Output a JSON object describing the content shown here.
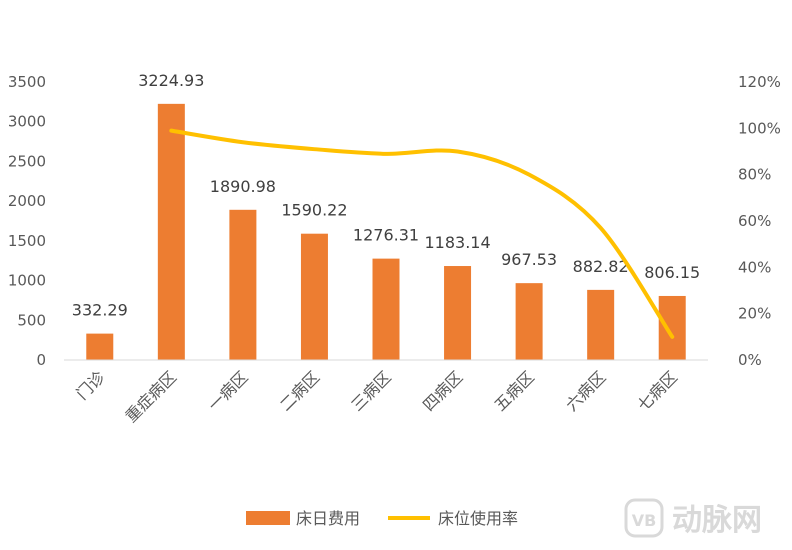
{
  "chart_data": {
    "type": "bar+line",
    "categories": [
      "门诊",
      "重症病区",
      "一病区",
      "二病区",
      "三病区",
      "四病区",
      "五病区",
      "六病区",
      "七病区"
    ],
    "series": [
      {
        "name": "床日费用",
        "type": "bar",
        "axis": "left",
        "color": "#ED7D31",
        "values": [
          332.29,
          3224.93,
          1890.98,
          1590.22,
          1276.31,
          1183.14,
          967.53,
          882.82,
          806.15
        ],
        "labels": [
          "332.29",
          "3224.93",
          "1890.98",
          "1590.22",
          "1276.31",
          "1183.14",
          "967.53",
          "882.82",
          "806.15"
        ]
      },
      {
        "name": "床位使用率",
        "type": "line",
        "axis": "right",
        "color": "#FFC000",
        "points": [
          {
            "category": "重症病区",
            "value": 99
          },
          {
            "category": "一病区",
            "value": 94
          },
          {
            "category": "二病区",
            "value": 91
          },
          {
            "category": "三病区",
            "value": 89
          },
          {
            "category": "四病区",
            "value": 90
          },
          {
            "category": "五病区",
            "value": 80
          },
          {
            "category": "六病区",
            "value": 57
          },
          {
            "category": "七病区",
            "value": 10
          }
        ]
      }
    ],
    "y_left": {
      "ylim": [
        0,
        3500
      ],
      "ticks": [
        0,
        500,
        1000,
        1500,
        2000,
        2500,
        3000,
        3500
      ],
      "tick_labels": [
        "0",
        "500",
        "1000",
        "1500",
        "2000",
        "2500",
        "3000",
        "3500"
      ]
    },
    "y_right": {
      "ylim": [
        0,
        120
      ],
      "ticks": [
        0,
        20,
        40,
        60,
        80,
        100,
        120
      ],
      "tick_labels": [
        "0%",
        "20%",
        "40%",
        "60%",
        "80%",
        "100%",
        "120%"
      ]
    },
    "grid": false,
    "legend_position": "bottom-center",
    "legend": [
      "床日费用",
      "床位使用率"
    ]
  },
  "watermark": {
    "text": "动脉网",
    "logo_text": "VB",
    "color": "#d9d9d9"
  }
}
